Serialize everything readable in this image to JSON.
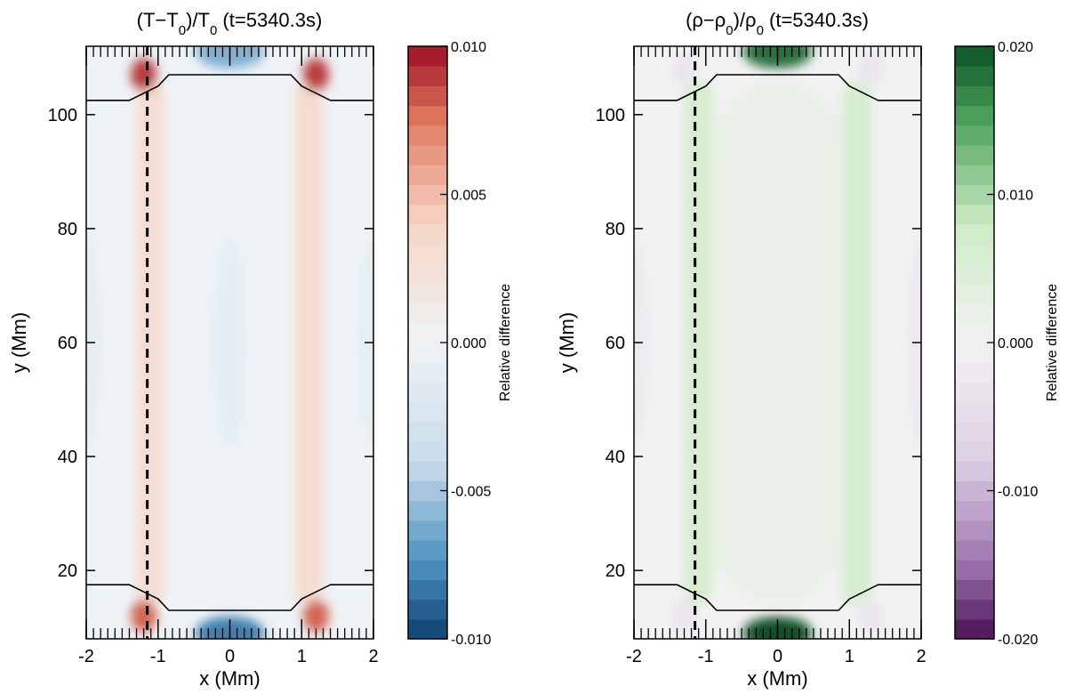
{
  "chart_data": [
    {
      "type": "heatmap",
      "title_parts": [
        "(T−T",
        "0",
        ")/T",
        "0",
        " (t=5340.3s)"
      ],
      "xlabel": "x (Mm)",
      "ylabel": "y (Mm)",
      "xlim": [
        -2,
        2
      ],
      "ylim": [
        8,
        112
      ],
      "xticks": [
        -2,
        -1,
        0,
        1,
        2
      ],
      "xtick_labels": [
        "-2",
        "-1",
        "0",
        "1",
        "2"
      ],
      "yticks": [
        20,
        40,
        60,
        80,
        100
      ],
      "ytick_labels": [
        "20",
        "40",
        "60",
        "80",
        "100"
      ],
      "colormap": "RdBu (red positive, blue negative)",
      "colorbar": {
        "label": "Relative difference",
        "range": [
          -0.01,
          0.01
        ],
        "levels": 30,
        "ticks": [
          0.01,
          0.005,
          0.0,
          -0.005,
          -0.01
        ],
        "tick_labels": [
          "0.010",
          "0.005",
          "0.000",
          "-0.005",
          "-0.010"
        ]
      },
      "colors": {
        "positive_strong": "#9e0f25",
        "positive_mid": "#e07a5f",
        "positive_light": "#f6d6c6",
        "neutral": "#eef3f6",
        "negative_light": "#c9dcea",
        "negative_mid": "#4a90c0",
        "negative_strong": "#0e3f6e"
      },
      "dashed_line_x": -1.15,
      "loop_boundary_curves": [
        {
          "name": "top",
          "x": [
            -2,
            -1.4,
            -1.0,
            -0.85,
            0.85,
            1.0,
            1.4,
            2
          ],
          "y": [
            102.5,
            102.5,
            105,
            107,
            107,
            105,
            102.5,
            102.5
          ]
        },
        {
          "name": "bottom",
          "x": [
            -2,
            -1.4,
            -1.0,
            -0.85,
            0.85,
            1.0,
            1.4,
            2
          ],
          "y": [
            17.5,
            17.5,
            15,
            13,
            13,
            15,
            17.5,
            17.5
          ]
        }
      ],
      "features": [
        {
          "x": -1.1,
          "y_range": [
            14,
            106
          ],
          "value": 0.003
        },
        {
          "x": 1.1,
          "y_range": [
            14,
            106
          ],
          "value": 0.003
        },
        {
          "x": -1.2,
          "y": 107,
          "value": 0.009
        },
        {
          "x": 1.2,
          "y": 107,
          "value": 0.009
        },
        {
          "x": -1.2,
          "y": 12,
          "value": 0.008
        },
        {
          "x": 1.2,
          "y": 12,
          "value": 0.008
        },
        {
          "x": 0.0,
          "y": 111,
          "value": -0.006
        },
        {
          "x": 0.0,
          "y": 9,
          "value": -0.008
        },
        {
          "x": 0.0,
          "y": 60,
          "value": -0.001
        },
        {
          "x": -2.0,
          "y": 60,
          "value": -0.001
        },
        {
          "x": 2.0,
          "y": 60,
          "value": -0.001
        }
      ]
    },
    {
      "type": "heatmap",
      "title_parts": [
        "(ρ−ρ",
        "0",
        ")/ρ",
        "0",
        " (t=5340.3s)"
      ],
      "xlabel": "x (Mm)",
      "ylabel": "y (Mm)",
      "xlim": [
        -2,
        2
      ],
      "ylim": [
        8,
        112
      ],
      "xticks": [
        -2,
        -1,
        0,
        1,
        2
      ],
      "xtick_labels": [
        "-2",
        "-1",
        "0",
        "1",
        "2"
      ],
      "yticks": [
        20,
        40,
        60,
        80,
        100
      ],
      "ytick_labels": [
        "20",
        "40",
        "60",
        "80",
        "100"
      ],
      "colormap": "PRGn (green positive, purple negative)",
      "colorbar": {
        "label": "Relative difference",
        "range": [
          -0.02,
          0.02
        ],
        "levels": 30,
        "ticks": [
          0.02,
          0.01,
          0.0,
          -0.01,
          -0.02
        ],
        "tick_labels": [
          "0.020",
          "0.010",
          "0.000",
          "-0.010",
          "-0.020"
        ]
      },
      "colors": {
        "positive_strong": "#0b5226",
        "positive_mid": "#4fa35c",
        "positive_light": "#cdebc5",
        "neutral": "#f2f2f2",
        "negative_light": "#ddcfe4",
        "negative_mid": "#9b72ad",
        "negative_strong": "#4a0f54"
      },
      "dashed_line_x": -1.15,
      "loop_boundary_curves": [
        {
          "name": "top",
          "x": [
            -2,
            -1.4,
            -1.0,
            -0.85,
            0.85,
            1.0,
            1.4,
            2
          ],
          "y": [
            102.5,
            102.5,
            105,
            107,
            107,
            105,
            102.5,
            102.5
          ]
        },
        {
          "name": "bottom",
          "x": [
            -2,
            -1.4,
            -1.0,
            -0.85,
            0.85,
            1.0,
            1.4,
            2
          ],
          "y": [
            17.5,
            17.5,
            15,
            13,
            13,
            15,
            17.5,
            17.5
          ]
        }
      ],
      "features": [
        {
          "x": -1.1,
          "y_range": [
            14,
            106
          ],
          "value": 0.006
        },
        {
          "x": 1.1,
          "y_range": [
            14,
            106
          ],
          "value": 0.006
        },
        {
          "x": 0.0,
          "y_range": [
            14,
            106
          ],
          "value": 0.002
        },
        {
          "x": 0.0,
          "y": 111,
          "value": 0.018
        },
        {
          "x": 0.0,
          "y": 9,
          "value": 0.02
        },
        {
          "x": -1.3,
          "y": 108,
          "value": -0.003
        },
        {
          "x": 1.3,
          "y": 108,
          "value": -0.003
        },
        {
          "x": -1.3,
          "y": 12,
          "value": -0.003
        },
        {
          "x": 1.3,
          "y": 12,
          "value": -0.003
        },
        {
          "x": -2.0,
          "y": 60,
          "value": -0.002
        },
        {
          "x": 2.0,
          "y": 60,
          "value": -0.002
        }
      ]
    }
  ]
}
